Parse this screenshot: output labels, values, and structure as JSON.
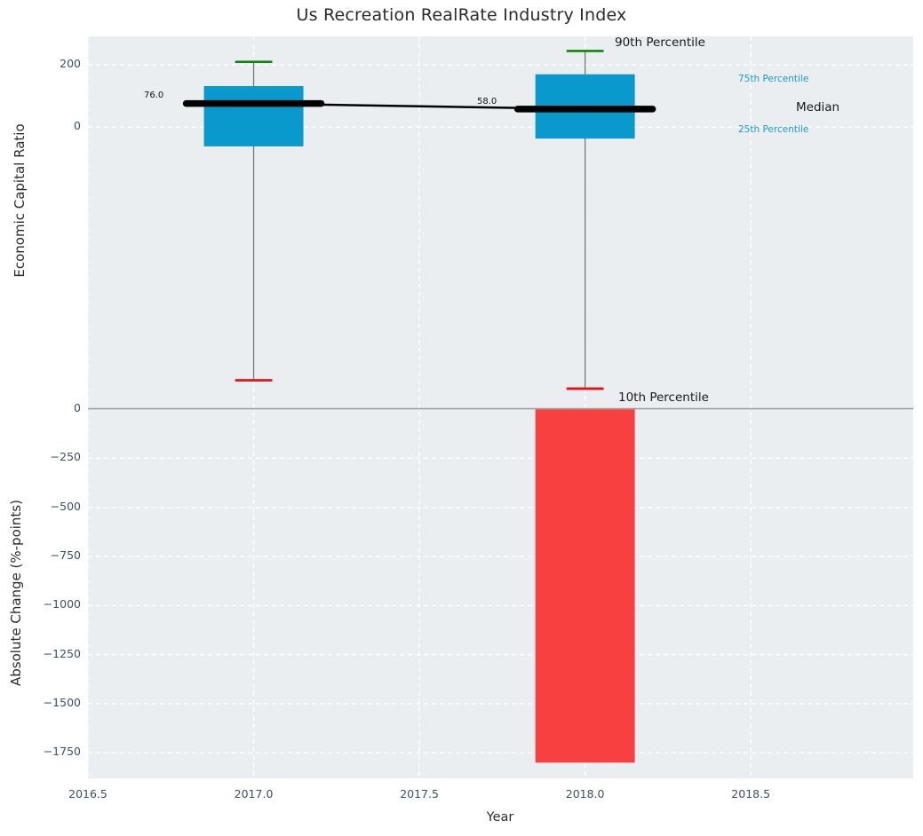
{
  "colors": {
    "plot_background": "#eaeef0",
    "grid": "#ffffff",
    "box_blue": "#0999cc",
    "legend_blue_text": "#1a9bd3",
    "bar_red": "#f94040",
    "cap_red": "#e51414",
    "cap_green": "#0c850c",
    "whisker_gray": "#707070",
    "median_black": "#000000",
    "tick_text": "#3e4f63",
    "divider_gray": "#9b9b9b"
  },
  "chart_data": {
    "type": "box",
    "title": "Us Recreation RealRate Industry Index",
    "xlabel": "Year",
    "box_width": 0.3,
    "cap_width": 0.056,
    "x_axis": {
      "xlim": [
        2016.5,
        2018.99
      ],
      "ticks": [
        {
          "v": 2016.5,
          "label": "2016.5"
        },
        {
          "v": 2017.0,
          "label": "2017.0"
        },
        {
          "v": 2017.5,
          "label": "2017.5"
        },
        {
          "v": 2018.0,
          "label": "2018.0"
        },
        {
          "v": 2018.5,
          "label": "2018.5"
        }
      ]
    },
    "top_panel": {
      "ylabel": "Economic Capital Ratio",
      "ylim": [
        -905,
        292
      ],
      "yticks": [
        {
          "v": 200,
          "label": "200"
        },
        {
          "v": 0,
          "label": "0"
        }
      ],
      "boxes": [
        {
          "x": 2017,
          "p10": -815,
          "p25": -62,
          "median": 76,
          "p75": 132,
          "p90": 210,
          "median_label": "76.0"
        },
        {
          "x": 2018,
          "p10": -842,
          "p25": -37,
          "median": 58,
          "p75": 170,
          "p90": 245,
          "median_label": "58.0"
        }
      ],
      "median_trend": [
        {
          "x": 2017,
          "y": 76
        },
        {
          "x": 2018,
          "y": 58
        }
      ]
    },
    "bottom_panel": {
      "ylabel": "Absolute Change (%-points)",
      "ylim": [
        -1880,
        5
      ],
      "yticks": [
        {
          "v": 0,
          "label": "0"
        },
        {
          "v": -250,
          "label": "−250"
        },
        {
          "v": -500,
          "label": "−500"
        },
        {
          "v": -750,
          "label": "−750"
        },
        {
          "v": -1000,
          "label": "−1000"
        },
        {
          "v": -1250,
          "label": "−1250"
        },
        {
          "v": -1500,
          "label": "−1500"
        },
        {
          "v": -1750,
          "label": "−1750"
        }
      ],
      "bars": [
        {
          "x": 2018,
          "value": -1800
        }
      ]
    },
    "legend_annotations": [
      {
        "id": "p90",
        "text": "90th Percentile",
        "style": "big-black"
      },
      {
        "id": "p75",
        "text": "75th Percentile",
        "style": "small-blue"
      },
      {
        "id": "median",
        "text": "Median",
        "style": "big-black"
      },
      {
        "id": "p25",
        "text": "25th Percentile",
        "style": "small-blue"
      },
      {
        "id": "p10",
        "text": "10th Percentile",
        "style": "big-black"
      }
    ]
  }
}
